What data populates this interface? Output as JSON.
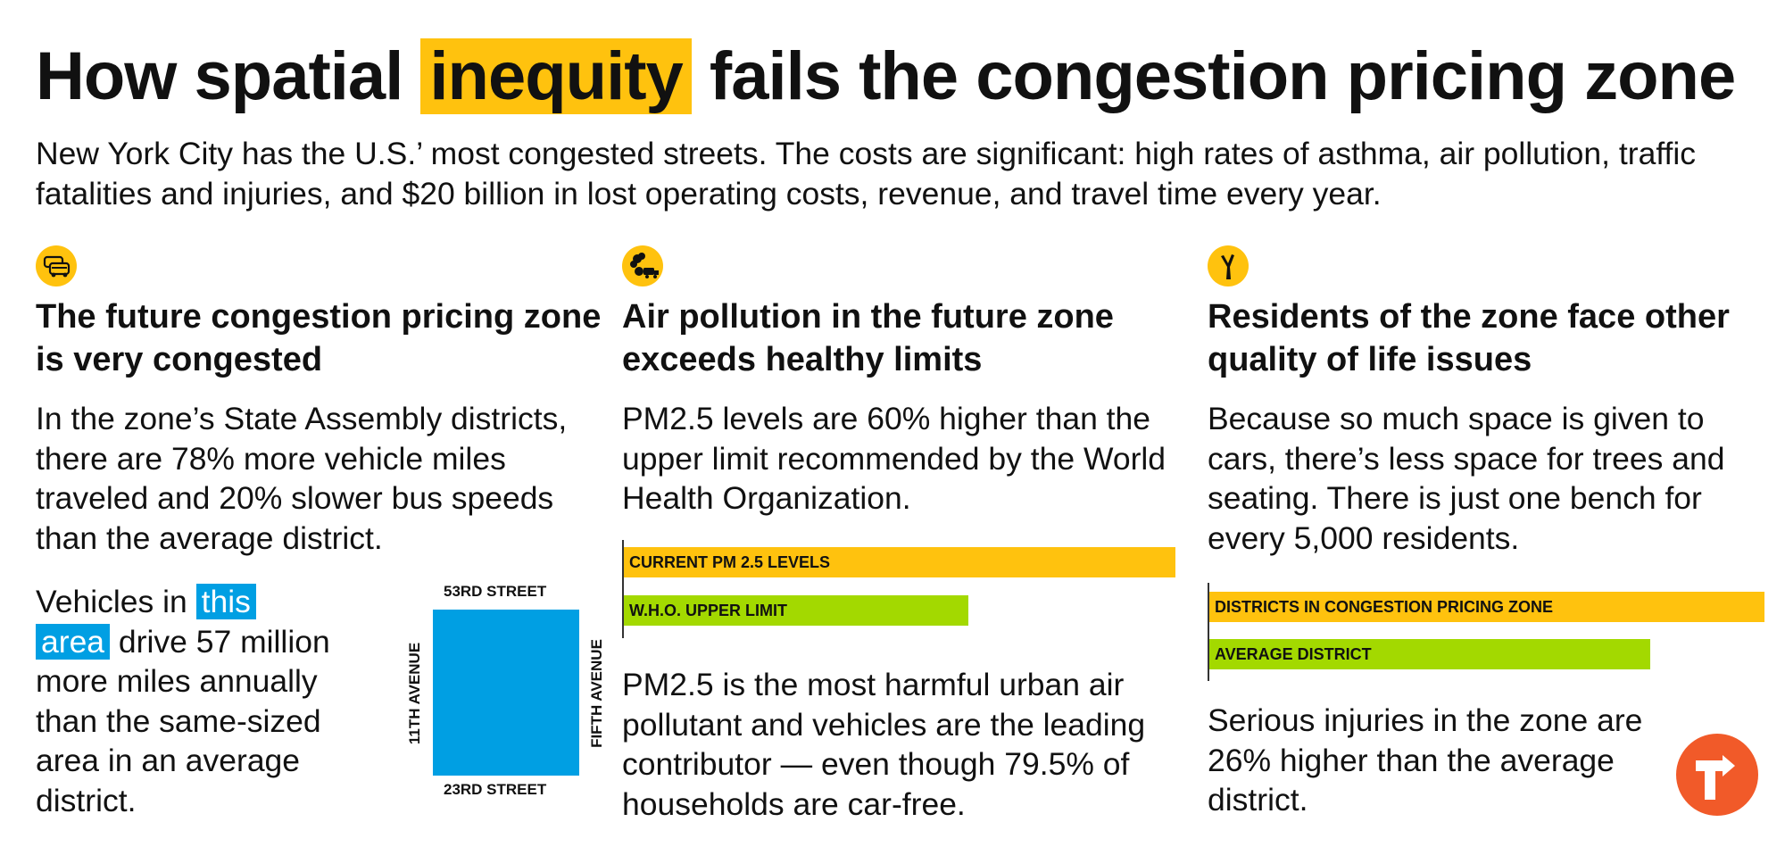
{
  "title": {
    "before": "How spatial ",
    "highlight": "inequity",
    "after": " fails the congestion pricing zone"
  },
  "intro": "New York City has the U.S.’ most congested streets. The costs are significant: high rates of asthma, air pollution, traffic fatalities and injuries, and $20 billion in lost operating costs, revenue, and travel time every year.",
  "colors": {
    "accent_yellow": "#FFC20E",
    "accent_green": "#A3D900",
    "accent_blue": "#009FE3",
    "logo_orange": "#F15A29"
  },
  "columns": [
    {
      "icon": "traffic-cars-icon",
      "heading": "The future congestion pricing zone is very congested",
      "paragraph": "In the zone’s State Assembly districts, there are 78% more vehicle miles traveled and 20% slower bus speeds than the average district.",
      "paragraph2": {
        "before": "Vehicles in ",
        "highlight1": "this",
        "highlight2": "area",
        "after": " drive 57 million more miles annually than the same-sized area in an average district."
      },
      "map": {
        "top_street": "53RD STREET",
        "bottom_street": "23RD STREET",
        "left_street": "11TH AVENUE",
        "right_street": "FIFTH AVENUE"
      }
    },
    {
      "icon": "pollution-truck-icon",
      "heading": "Air pollution in the future zone exceeds healthy limits",
      "paragraph": "PM2.5 levels are 60% higher than the upper limit recommended by the World Health Organization.",
      "paragraph2": "PM2.5 is the most harmful urban air pollutant and vehicles are the leading contributor — even though 79.5% of households are car-free.",
      "bars": [
        {
          "label": "CURRENT PM 2.5 LEVELS",
          "value": 1.6,
          "color": "#FFC20E"
        },
        {
          "label": "W.H.O. UPPER LIMIT",
          "value": 1.0,
          "color": "#A3D900"
        }
      ]
    },
    {
      "icon": "tree-icon",
      "heading": "Residents of the zone face other quality of life issues",
      "paragraph": "Because so much space is given to cars, there’s less space for trees and seating. There is just one bench for every 5,000 residents.",
      "paragraph2": "Serious injuries in the zone are 26% higher than the average district.",
      "bars": [
        {
          "label": "DISTRICTS IN CONGESTION PRICING ZONE",
          "value": 1.26,
          "color": "#FFC20E"
        },
        {
          "label": "AVERAGE DISTRICT",
          "value": 1.0,
          "color": "#A3D900"
        }
      ]
    }
  ],
  "logo": "transportation-alternatives-logo"
}
